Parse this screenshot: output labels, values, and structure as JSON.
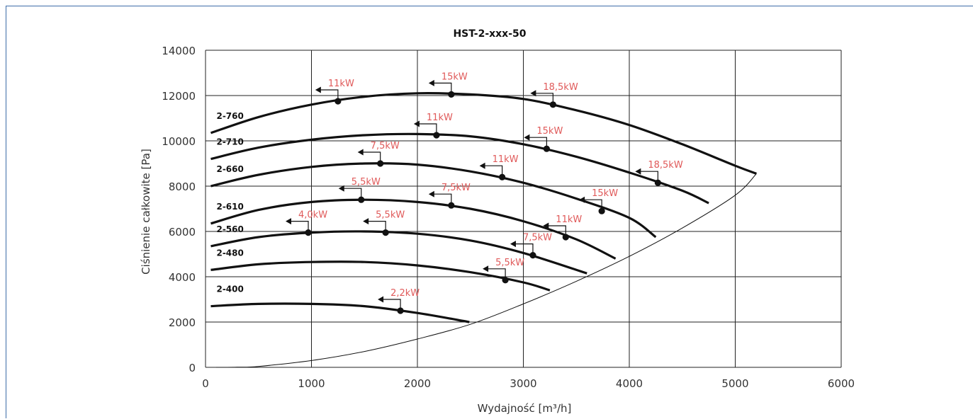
{
  "chart_data": {
    "type": "line",
    "title": "HST-2-xxx-50",
    "xlabel": "Wydajność [m³/h]",
    "ylabel": "Ciśnienie całkowite [Pa]",
    "xlim": [
      0,
      6000
    ],
    "ylim": [
      0,
      14000
    ],
    "x_ticks": [
      "0",
      "1000",
      "2000",
      "3000",
      "4000",
      "5000",
      "6000"
    ],
    "y_ticks": [
      "0",
      "2000",
      "4000",
      "6000",
      "8000",
      "10000",
      "12000",
      "14000"
    ],
    "grid": true,
    "series": [
      {
        "name": "2-760",
        "points": [
          [
            50,
            10350
          ],
          [
            500,
            11050
          ],
          [
            1000,
            11600
          ],
          [
            1500,
            11950
          ],
          [
            2000,
            12100
          ],
          [
            2500,
            12050
          ],
          [
            3000,
            11850
          ],
          [
            3500,
            11350
          ],
          [
            4000,
            10700
          ],
          [
            4500,
            9850
          ],
          [
            5000,
            8900
          ],
          [
            5200,
            8550
          ]
        ],
        "markers": [
          {
            "x": 1250,
            "y": 11750,
            "label": "11kW"
          },
          {
            "x": 2320,
            "y": 12050,
            "label": "15kW"
          },
          {
            "x": 3280,
            "y": 11600,
            "label": "18,5kW"
          }
        ]
      },
      {
        "name": "2-710",
        "points": [
          [
            50,
            9200
          ],
          [
            500,
            9700
          ],
          [
            1000,
            10050
          ],
          [
            1500,
            10250
          ],
          [
            2000,
            10300
          ],
          [
            2500,
            10200
          ],
          [
            3000,
            9850
          ],
          [
            3500,
            9300
          ],
          [
            4000,
            8600
          ],
          [
            4500,
            7800
          ],
          [
            4750,
            7250
          ]
        ],
        "markers": [
          {
            "x": 2180,
            "y": 10250,
            "label": "11kW"
          },
          {
            "x": 3220,
            "y": 9650,
            "label": "15kW"
          },
          {
            "x": 4270,
            "y": 8150,
            "label": "18,5kW"
          }
        ]
      },
      {
        "name": "2-660",
        "points": [
          [
            50,
            8000
          ],
          [
            500,
            8500
          ],
          [
            1000,
            8850
          ],
          [
            1500,
            9000
          ],
          [
            2000,
            8950
          ],
          [
            2500,
            8650
          ],
          [
            3000,
            8150
          ],
          [
            3500,
            7450
          ],
          [
            4000,
            6600
          ],
          [
            4250,
            5750
          ]
        ],
        "markers": [
          {
            "x": 1650,
            "y": 9000,
            "label": "7,5kW"
          },
          {
            "x": 2800,
            "y": 8400,
            "label": "11kW"
          },
          {
            "x": 3740,
            "y": 6900,
            "label": "15kW"
          }
        ]
      },
      {
        "name": "2-610",
        "points": [
          [
            50,
            6350
          ],
          [
            500,
            6950
          ],
          [
            1000,
            7300
          ],
          [
            1500,
            7400
          ],
          [
            2000,
            7300
          ],
          [
            2500,
            7000
          ],
          [
            3000,
            6450
          ],
          [
            3500,
            5650
          ],
          [
            3870,
            4800
          ]
        ],
        "markers": [
          {
            "x": 1470,
            "y": 7400,
            "label": "5,5kW"
          },
          {
            "x": 2320,
            "y": 7150,
            "label": "7,5kW"
          },
          {
            "x": 3400,
            "y": 5750,
            "label": "11kW"
          }
        ]
      },
      {
        "name": "2-560",
        "points": [
          [
            50,
            5350
          ],
          [
            500,
            5750
          ],
          [
            1000,
            5950
          ],
          [
            1500,
            6000
          ],
          [
            2000,
            5900
          ],
          [
            2500,
            5600
          ],
          [
            3000,
            5050
          ],
          [
            3600,
            4150
          ]
        ],
        "markers": [
          {
            "x": 970,
            "y": 5950,
            "label": "4,0kW"
          },
          {
            "x": 1700,
            "y": 5950,
            "label": "5,5kW"
          },
          {
            "x": 3090,
            "y": 4950,
            "label": "7,5kW"
          }
        ]
      },
      {
        "name": "2-480",
        "points": [
          [
            50,
            4300
          ],
          [
            500,
            4550
          ],
          [
            1000,
            4650
          ],
          [
            1500,
            4650
          ],
          [
            2000,
            4500
          ],
          [
            2500,
            4200
          ],
          [
            3000,
            3750
          ],
          [
            3250,
            3400
          ]
        ],
        "markers": [
          {
            "x": 2830,
            "y": 3850,
            "label": "5,5kW"
          }
        ]
      },
      {
        "name": "2-400",
        "points": [
          [
            50,
            2700
          ],
          [
            500,
            2800
          ],
          [
            1000,
            2800
          ],
          [
            1500,
            2700
          ],
          [
            2000,
            2400
          ],
          [
            2490,
            2000
          ]
        ],
        "markers": [
          {
            "x": 1840,
            "y": 2500,
            "label": "2,2kW"
          }
        ]
      }
    ],
    "limit_curve": [
      [
        100,
        0
      ],
      [
        300,
        5
      ],
      [
        500,
        40
      ],
      [
        1000,
        300
      ],
      [
        1500,
        700
      ],
      [
        2000,
        1250
      ],
      [
        2500,
        1900
      ],
      [
        3000,
        2800
      ],
      [
        3500,
        3800
      ],
      [
        4000,
        4900
      ],
      [
        4500,
        6150
      ],
      [
        5000,
        7600
      ],
      [
        5200,
        8550
      ]
    ]
  }
}
